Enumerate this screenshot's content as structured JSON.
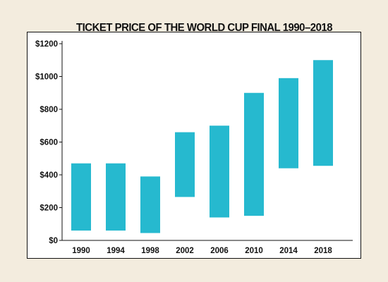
{
  "chart_data": {
    "type": "bar",
    "subtype": "floating-range",
    "title": "TICKET PRICE OF THE WORLD CUP FINAL 1990–2018",
    "categories": [
      "1990",
      "1994",
      "1998",
      "2002",
      "2006",
      "2010",
      "2014",
      "2018"
    ],
    "series": [
      {
        "low": [
          60,
          60,
          45,
          265,
          140,
          150,
          440,
          455
        ],
        "high": [
          470,
          470,
          390,
          660,
          700,
          900,
          990,
          1100
        ]
      }
    ],
    "ylim": [
      0,
      1200
    ],
    "yticks": [
      0,
      200,
      400,
      600,
      800,
      1000,
      1200
    ],
    "ytick_labels": [
      "$0",
      "$200",
      "$400",
      "$600",
      "$800",
      "$1000",
      "$1200"
    ],
    "xlabel": "",
    "ylabel": "",
    "grid": false,
    "legend": "none",
    "colors": {
      "bar": "#26b9cf",
      "axis": "#111111",
      "panel": "#ffffff",
      "background": "#f3ecde"
    }
  }
}
